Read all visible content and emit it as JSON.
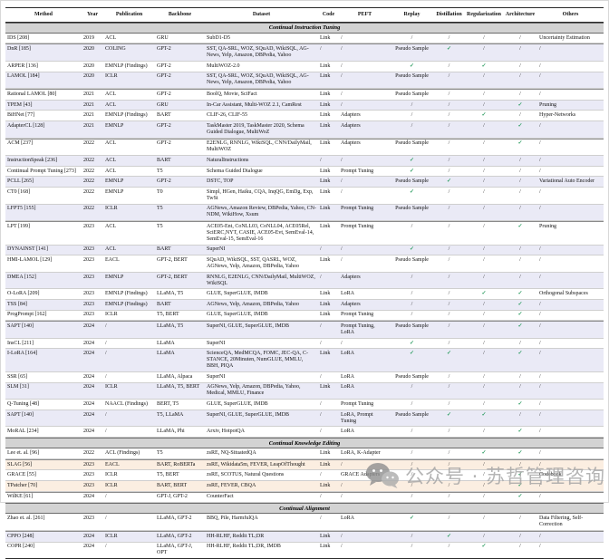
{
  "watermark": {
    "text": "公众号 · 苏哲管理咨询"
  },
  "colors": {
    "check_green": "#2f9e63",
    "stripe_lavender": "#eaeaf6",
    "stripe_peach": "#fbeee1",
    "section_band_gray": "#d3d3d3",
    "watermark_gray": "#a3a3a3"
  },
  "table": {
    "columns": [
      "Method",
      "Year",
      "Publication",
      "Backbone",
      "Dataset",
      "Code",
      "PEFT",
      "Replay",
      "Distillation",
      "Regularization",
      "Architecture",
      "Others"
    ],
    "sections": [
      {
        "title": "Continual Instruction Tuning",
        "stripe": "lavender",
        "rows": [
          {
            "sep": false,
            "cells": [
              "IDS [208]",
              "2019",
              "ACL",
              "GRU",
              "SubD1-D5",
              "Link",
              "/",
              "/",
              "/",
              "/",
              "/",
              "Uncertainty Estimation"
            ]
          },
          {
            "sep": true,
            "cells": [
              "DnR [185]",
              "2020",
              "COLING",
              "GPT-2",
              "SST, QA-SRL, WOZ, SQuAD, WikiSQL, AG-News, Yelp, Amazon, DBPedia, Yahoo",
              "/",
              "/",
              "Pseudo Sample",
              "✓",
              "/",
              "/",
              "/"
            ]
          },
          {
            "sep": false,
            "cells": [
              "ARPER [136]",
              "2020",
              "EMNLP (Findings)",
              "GPT-2",
              "MultiWOZ-2.0",
              "Link",
              "/",
              "✓",
              "/",
              "✓",
              "/",
              "/"
            ]
          },
          {
            "sep": false,
            "cells": [
              "LAMOL [184]",
              "2020",
              "ICLR",
              "GPT-2",
              "SST, QA-SRL, WOZ, SQuAD, WikiSQL, AG-News, Yelp, Amazon, DBPedia, Yahoo",
              "Link",
              "/",
              "Pseudo Sample",
              "/",
              "/",
              "/",
              "/"
            ]
          },
          {
            "sep": true,
            "cells": [
              "Rational LAMOL [80]",
              "2021",
              "ACL",
              "GPT-2",
              "BoolQ, Movie, SciFact",
              "Link",
              "/",
              "Pseudo Sample",
              "/",
              "/",
              "/",
              "/"
            ]
          },
          {
            "sep": false,
            "cells": [
              "TPEM [43]",
              "2021",
              "ACL",
              "GRU",
              "In-Car Assistant, Multi-WOZ 2.1, CamRest",
              "Link",
              "/",
              "/",
              "/",
              "/",
              "✓",
              "Pruning"
            ]
          },
          {
            "sep": false,
            "cells": [
              "BiHNet [77]",
              "2021",
              "EMNLP (Findings)",
              "BART",
              "CLIF-26, CLIF-55",
              "Link",
              "Adapters",
              "/",
              "/",
              "✓",
              "/",
              "Hyper-Networks"
            ]
          },
          {
            "sep": false,
            "cells": [
              "AdapterCL [128]",
              "2021",
              "EMNLP",
              "GPT-2",
              "TaskMaster 2019, TaskMaster 2020, Schema Guided Dialogue, MultiWoZ",
              "Link",
              "Adapters",
              "/",
              "/",
              "/",
              "✓",
              "/"
            ]
          },
          {
            "sep": true,
            "cells": [
              "ACM [237]",
              "2022",
              "ACL",
              "GPT-2",
              "E2ENLG, RNNLG, WikiSQL, CNN/DailyMail, MultiWOZ",
              "Link",
              "Adapters",
              "Pseudo Sample",
              "/",
              "/",
              "✓",
              "/"
            ]
          },
          {
            "sep": false,
            "cells": [
              "InstructionSpeak [236]",
              "2022",
              "ACL",
              "BART",
              "NaturalInstructions",
              "/",
              "/",
              "✓",
              "/",
              "/",
              "/",
              "/"
            ]
          },
          {
            "sep": false,
            "cells": [
              "Continual Prompt Tuning [273]",
              "2022",
              "ACL",
              "T5",
              "Schema Guided Dialogue",
              "Link",
              "Prompt Tuning",
              "✓",
              "/",
              "/",
              "/",
              "/"
            ]
          },
          {
            "sep": false,
            "cells": [
              "PCLL [265]",
              "2022",
              "EMNLP",
              "GPT-2",
              "DSTC, TOP",
              "Link",
              "/",
              "Pseudo Sample",
              "✓",
              "/",
              "/",
              "Variational Auto Encoder"
            ]
          },
          {
            "sep": false,
            "cells": [
              "CT0 [168]",
              "2022",
              "EMNLP",
              "T0",
              "Simpl, HGen, Haiku, CQA, InqQG, EmDg, Exp, TwSt",
              "Link",
              "/",
              "✓",
              "/",
              "/",
              "/",
              "/"
            ]
          },
          {
            "sep": false,
            "cells": [
              "LFPT5 [155]",
              "2022",
              "ICLR",
              "T5",
              "AGNews, Amazon Review, DBPedia, Yahoo, CN-NDM, WikiHow, Xsum",
              "Link",
              "Prompt Tuning",
              "Pseudo Sample",
              "/",
              "/",
              "/",
              "/"
            ]
          },
          {
            "sep": true,
            "cells": [
              "LPT [199]",
              "2023",
              "ACL",
              "T5",
              "ACE05-Ent, CoNLL03, CoNLL04, ACE05Rel, SciERC,NYT, CASIE, ACE05-Evt, SemEval-14, SemEval-15, SemEval-16",
              "Link",
              "Prompt Tuning",
              "/",
              "/",
              "/",
              "✓",
              "Pruning"
            ]
          },
          {
            "sep": false,
            "cells": [
              "DYNAINST [141]",
              "2023",
              "ACL",
              "BART",
              "SuperNI",
              "/",
              "/",
              "✓",
              "/",
              "/",
              "/",
              "/"
            ]
          },
          {
            "sep": false,
            "cells": [
              "HMI-LAMOL [129]",
              "2023",
              "EACL",
              "GPT-2, BERT",
              "SQuAD, WikiSQL, SST, QASRL, WOZ, AGNews, Yelp, Amazon, DBPedia, Yahoo",
              "Link",
              "/",
              "Pseudo Sample",
              "/",
              "/",
              "/",
              "/"
            ]
          },
          {
            "sep": false,
            "cells": [
              "DMEA [152]",
              "2023",
              "EMNLP",
              "GPT-2, BERT",
              "RNNLG, E2ENLG, CNN/DailyMail, MultiWOZ, WikiSQL",
              "/",
              "Adapters",
              "/",
              "/",
              "/",
              "/",
              "/"
            ]
          },
          {
            "sep": false,
            "cells": [
              "O-LoRA [209]",
              "2023",
              "EMNLP (Findings)",
              "LLaMA, T5",
              "GLUE, SuperGLUE, IMDB",
              "Link",
              "LoRA",
              "/",
              "/",
              "✓",
              "✓",
              "Orthogonal Subspaces"
            ]
          },
          {
            "sep": false,
            "cells": [
              "TSS [84]",
              "2023",
              "EMNLP (Findings)",
              "BART",
              "AGNews, Yelp, Amazon, DBPedia, Yahoo",
              "Link",
              "Adapters",
              "/",
              "/",
              "/",
              "✓",
              "/"
            ]
          },
          {
            "sep": false,
            "cells": [
              "ProgPrompt [162]",
              "2023",
              "ICLR",
              "T5, BERT",
              "GLUE, SuperGLUE, IMDB",
              "Link",
              "Prompt Tuning",
              "/",
              "/",
              "/",
              "✓",
              "/"
            ]
          },
          {
            "sep": true,
            "cells": [
              "SAPT [140]",
              "2024",
              "/",
              "LLaMA, T5",
              "SuperNI, GLUE, SuperGLUE, IMDB",
              "/",
              "Prompt Tuning, LoRA",
              "Pseudo Sample",
              "/",
              "/",
              "✓",
              "/"
            ]
          },
          {
            "sep": false,
            "cells": [
              "InsCL [211]",
              "2024",
              "/",
              "LLaMA",
              "SuperNI",
              "/",
              "/",
              "✓",
              "/",
              "/",
              "/",
              "/"
            ]
          },
          {
            "sep": false,
            "cells": [
              "I-LoRA [164]",
              "2024",
              "/",
              "LLaMA",
              "ScienceQA, MedMCQA, FOMC, JEC-QA, C-STANCE, 20Minuten, NumGLUE, MMLU, BBH, PIQA",
              "Link",
              "LoRA",
              "✓",
              "✓",
              "/",
              "✓",
              "/"
            ]
          },
          {
            "sep": false,
            "cells": [
              "SSR [65]",
              "2024",
              "/",
              "LLaMA, Alpaca",
              "SuperNI",
              "/",
              "LoRA",
              "Pseudo Sample",
              "/",
              "/",
              "/",
              "/"
            ]
          },
          {
            "sep": false,
            "cells": [
              "SLM [31]",
              "2024",
              "ICLR",
              "LLaMA, T5, BERT",
              "AGNews, Yelp, Amazon, DBPedia, Yahoo, Medical, MMLU, Finance",
              "Link",
              "LoRA",
              "/",
              "/",
              "/",
              "/",
              "/"
            ]
          },
          {
            "sep": false,
            "cells": [
              "Q-Tuning [48]",
              "2024",
              "NAACL (Findings)",
              "BERT, T5",
              "GLUE, SuperGLUE, IMDB",
              "/",
              "Prompt Tuning",
              "/",
              "/",
              "/",
              "✓",
              "/"
            ]
          },
          {
            "sep": false,
            "cells": [
              "SAPT [140]",
              "2024",
              "/",
              "T5, LLaMA",
              "SuperNI, GLUE, SuperGLUE, IMDB",
              "/",
              "LoRA, Prompt Tuning",
              "Pseudo Sample",
              "✓",
              "✓",
              "/",
              "/"
            ]
          },
          {
            "sep": false,
            "cells": [
              "MoRAL [234]",
              "2024",
              "/",
              "LLaMA, Phi",
              "Arxiv, HotpotQA",
              "/",
              "LoRA",
              "/",
              "/",
              "/",
              "✓",
              "/"
            ]
          }
        ]
      },
      {
        "title": "Continual Knowledge Editing",
        "stripe": "peach",
        "rows": [
          {
            "sep": false,
            "cells": [
              "Lee et. al. [96]",
              "2022",
              "ACL (Findings)",
              "T5",
              "zsRE, NQ-SituatedQA",
              "Link",
              "LoRA, K-Adapter",
              "/",
              "/",
              "✓",
              "✓",
              "/"
            ]
          },
          {
            "sep": true,
            "cells": [
              "SLAG [56]",
              "2023",
              "EACL",
              "BART, RoBERTa",
              "zsRE, Wikidata5m, FEVER, LeapOfThought",
              "Link",
              "/",
              "/",
              "/",
              "/",
              "/",
              "/"
            ]
          },
          {
            "sep": false,
            "cells": [
              "GRACE [55]",
              "2023",
              "ICLR",
              "T5, BERT",
              "zsRE, SCOTUS, Natural Questions",
              "/",
              "GRACE Adapters",
              "/",
              "/",
              "/",
              "✓",
              "Codebook"
            ]
          },
          {
            "sep": false,
            "cells": [
              "TPatcher [70]",
              "2023",
              "ICLR",
              "BART, BERT",
              "zsRE, FEVER, CBQA",
              "Link",
              "/",
              "/",
              "/",
              "/",
              "✓",
              "/"
            ]
          },
          {
            "sep": true,
            "cells": [
              "WilKE [61]",
              "2024",
              "/",
              "GPT-J, GPT-2",
              "CounterFact",
              "/",
              "/",
              "/",
              "/",
              "/",
              "✓",
              "/"
            ]
          }
        ]
      },
      {
        "title": "Continual Alignment",
        "stripe": "lavender",
        "rows": [
          {
            "sep": false,
            "cells": [
              "Zhao et. al. [261]",
              "2023",
              "/",
              "LLaMA, GPT-2",
              "BBQ, Pile, HarmfulQA",
              "/",
              "LoRA",
              "✓",
              "/",
              "/",
              "/",
              "Data Filtering, Self-Correction"
            ]
          },
          {
            "sep": true,
            "cells": [
              "CPPO [248]",
              "2024",
              "ICLR",
              "LLaMA, GPT-2",
              "HH-RLHF, Reddit TL;DR",
              "Link",
              "/",
              "/",
              "✓",
              "/",
              "/",
              "/"
            ]
          },
          {
            "sep": false,
            "cells": [
              "COPR [240]",
              "2024",
              "/",
              "LLaMA, GPT-J, OPT",
              "HH-RLHF, Reddit TL;DR, IMDB",
              "Link",
              "/",
              "/",
              "/",
              "✓",
              "/",
              "/"
            ]
          }
        ]
      }
    ]
  }
}
